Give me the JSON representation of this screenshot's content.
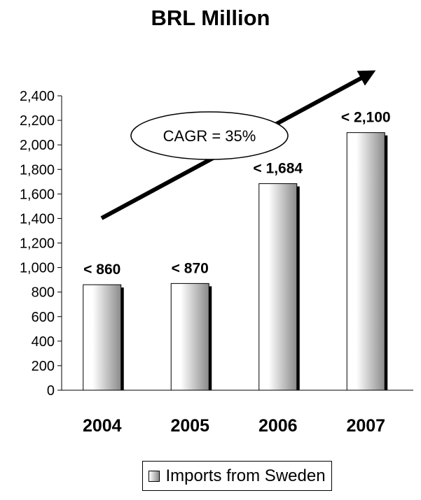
{
  "chart_data": {
    "type": "bar",
    "title": "BRL Million",
    "categories": [
      "2004",
      "2005",
      "2006",
      "2007"
    ],
    "series": [
      {
        "name": "Imports from Sweden",
        "values": [
          860,
          870,
          1684,
          2100
        ]
      }
    ],
    "data_labels": [
      "< 860",
      "< 870",
      "< 1,684",
      "< 2,100"
    ],
    "yticks": [
      0,
      200,
      400,
      600,
      800,
      1000,
      1200,
      1400,
      1600,
      1800,
      2000,
      2200,
      2400
    ],
    "ytick_labels": [
      "0",
      "200",
      "400",
      "600",
      "800",
      "1,000",
      "1,200",
      "1,400",
      "1,600",
      "1,800",
      "2,000",
      "2,200",
      "2,400"
    ],
    "ylim": [
      0,
      2400
    ],
    "grid": false,
    "legend_position": "bottom",
    "annotation": {
      "text": "CAGR = 35%",
      "shape": "ellipse",
      "arrow": "trend-up"
    },
    "colors": {
      "bar_light": "#ffffff",
      "bar_dark": "#8a8a8a",
      "shadow": "#000000"
    }
  }
}
